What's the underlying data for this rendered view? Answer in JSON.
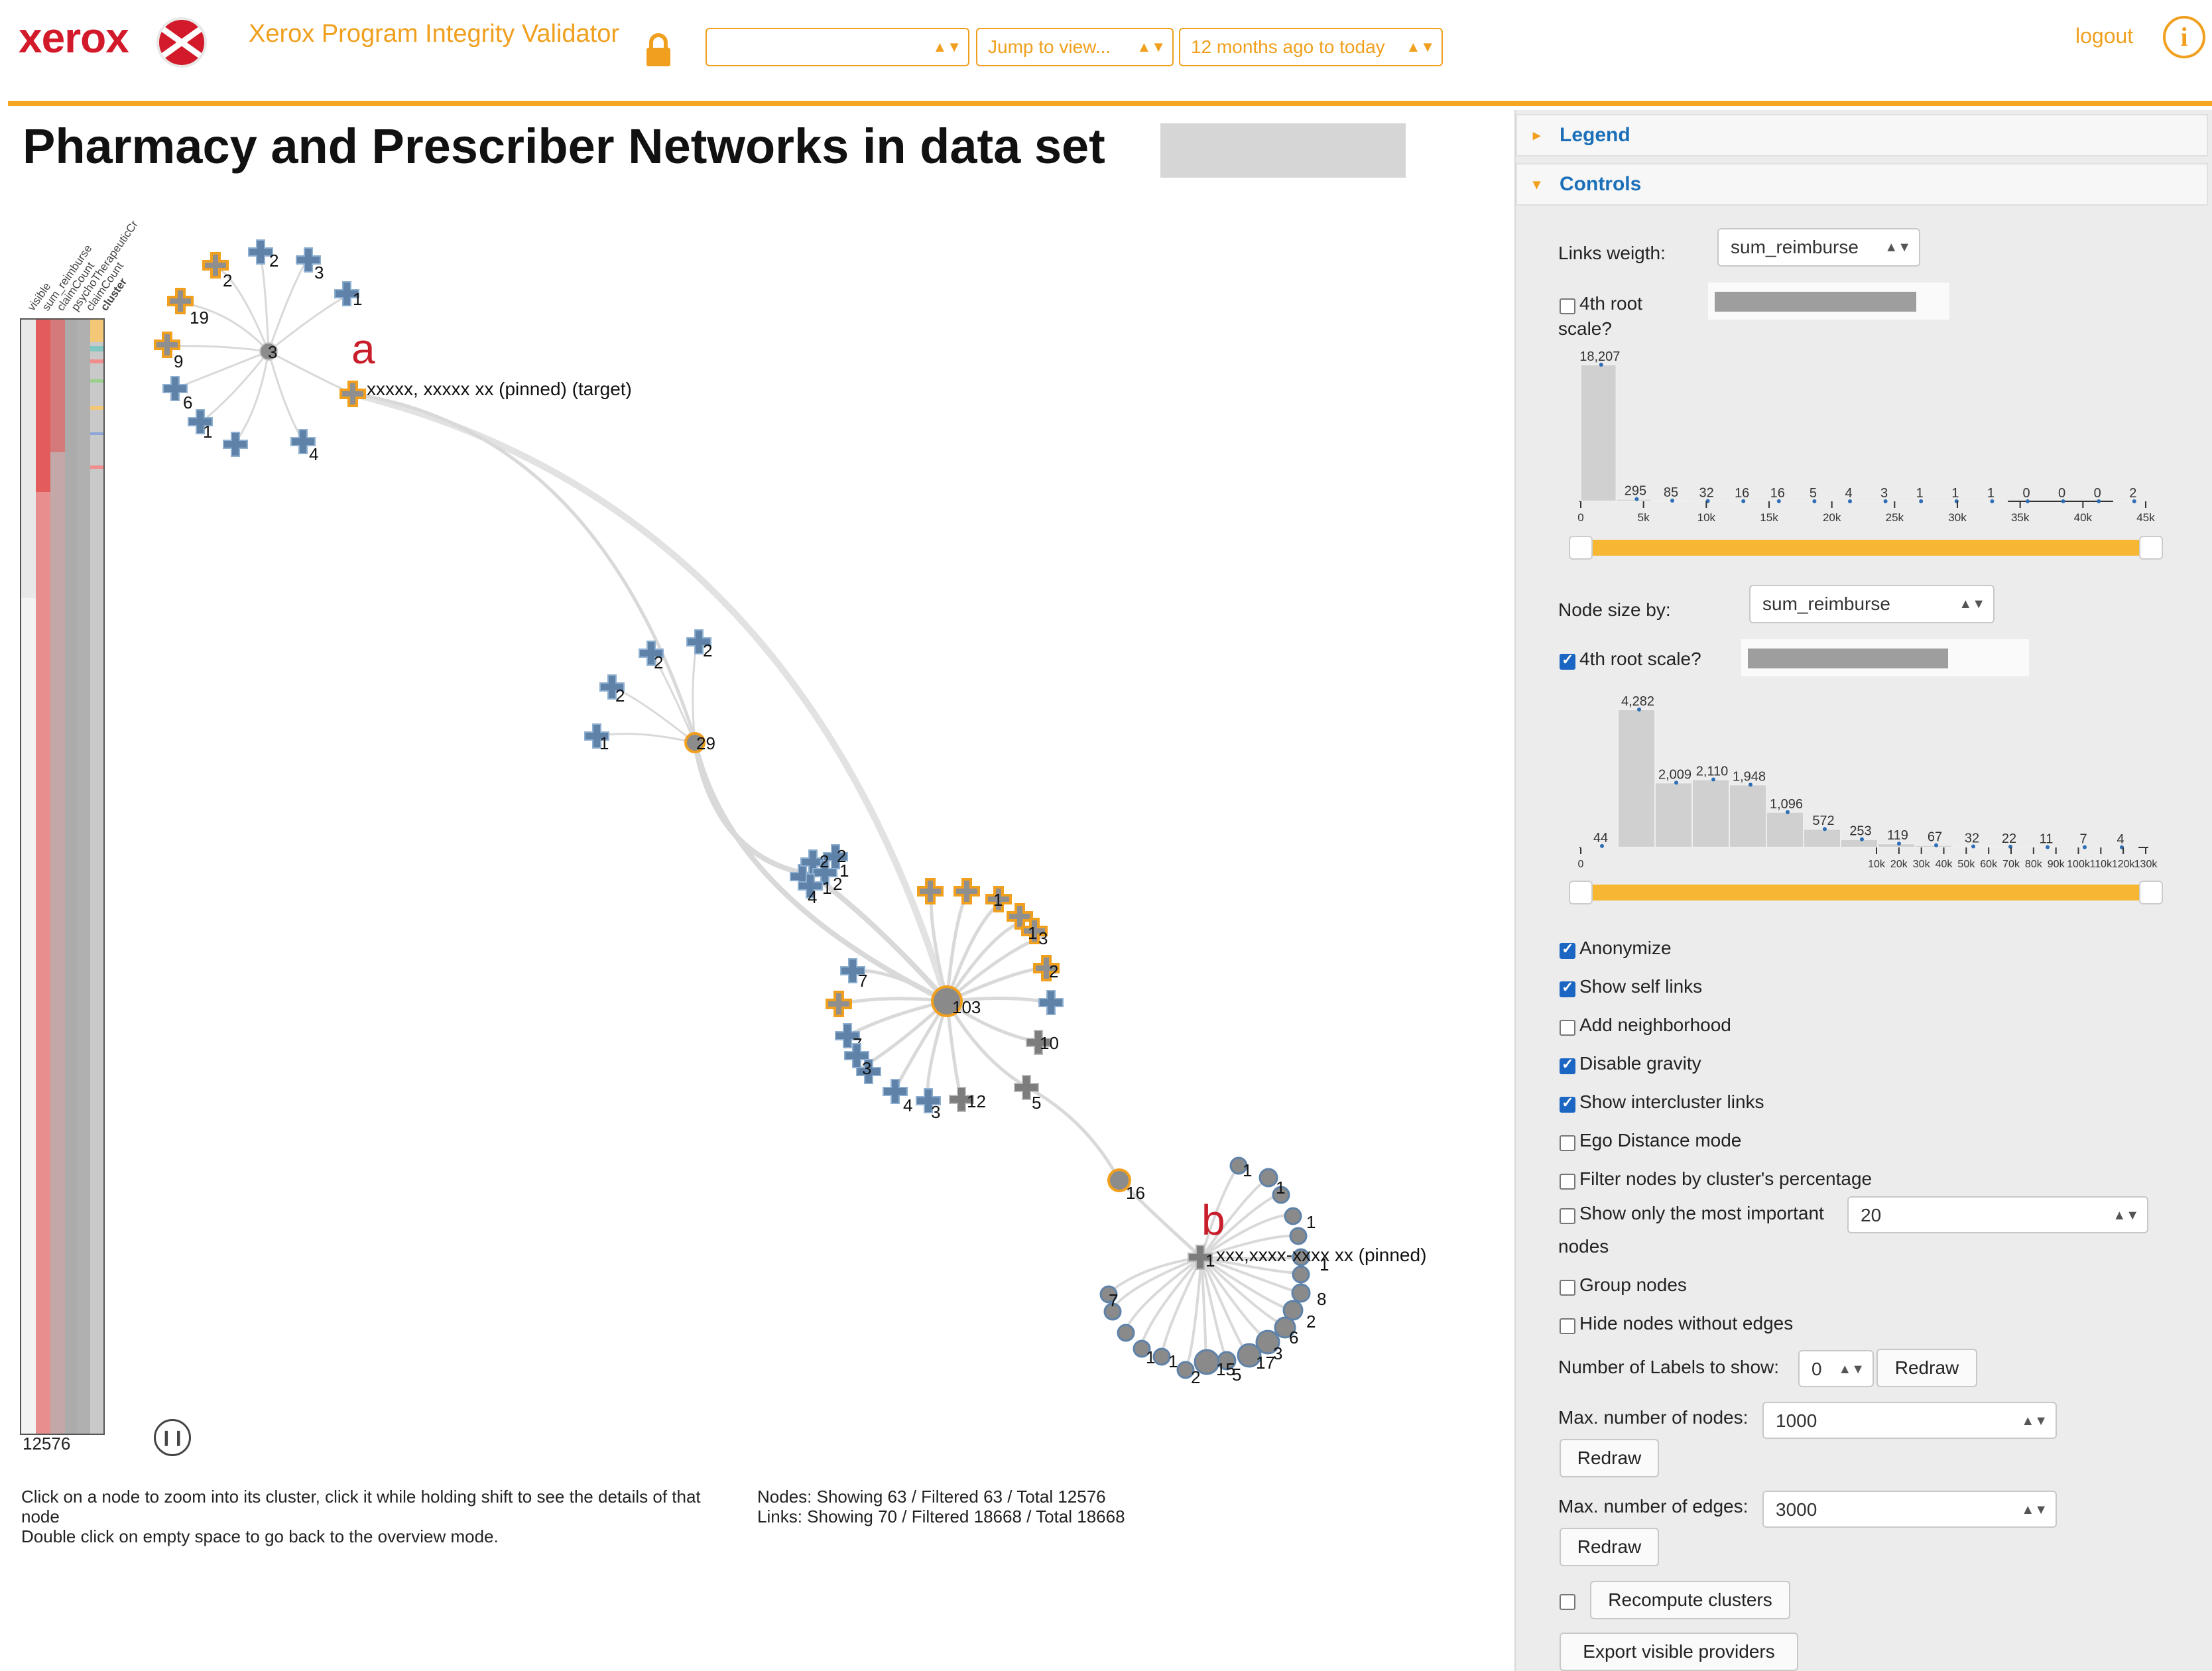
{
  "header": {
    "brand": "xerox",
    "app_title": "Xerox Program Integrity Validator",
    "dataset_select_value": "",
    "jump_select_value": "Jump to view...",
    "date_select_value": "12 months ago to today",
    "logout": "logout",
    "info_icon": "i",
    "accent": "#f0a01e"
  },
  "main": {
    "title": "Pharmacy and Prescriber Networks in data set",
    "heatmap": {
      "columns": [
        "visible",
        "sum_reimburse",
        "claimCount",
        "psychoTherapeuticCr",
        "claimCount",
        "cluster"
      ],
      "count": "12576"
    },
    "instructions": {
      "line1": "Click on a node to zoom into its cluster, click it while holding shift to see the details of that",
      "line2": "node",
      "line3": "Double click on empty space to go back to the overview mode."
    },
    "stats": {
      "nodes": "Nodes: Showing 63 / Filtered 63 / Total 12576",
      "links": "Links: Showing 70 / Filtered 18668 / Total 18668"
    }
  },
  "graph": {
    "annotation_a": "a",
    "annotation_b": "b",
    "label_a": "xxxxx, xxxxx xx (pinned) (target)",
    "label_b": "xxx,xxxx-xxxx xx (pinned)",
    "cluster1": {
      "hub": "3",
      "nodes": [
        [
          "2",
          "blue"
        ],
        [
          "3",
          "blue"
        ],
        [
          "2",
          "orange"
        ],
        [
          "19",
          "orange"
        ],
        [
          "1",
          "blue"
        ],
        [
          "9",
          "orange"
        ],
        [
          "6",
          "blue"
        ],
        [
          "1",
          "blue"
        ],
        [
          "",
          "blue"
        ],
        [
          "4",
          "blue"
        ]
      ]
    },
    "cluster2": {
      "hub": "29",
      "nodes": [
        [
          "2",
          "blue"
        ],
        [
          "2",
          "blue"
        ],
        [
          "2",
          "blue"
        ],
        [
          "1",
          "blue"
        ]
      ]
    },
    "cluster3": {
      "hub": "103",
      "labels": [
        "2",
        "2",
        "1",
        "2",
        "4",
        "1",
        "3",
        "2",
        "7",
        "10",
        "7",
        "3",
        "4",
        "3",
        "12",
        "5"
      ]
    },
    "cluster4": {
      "hub": "16"
    },
    "cluster5": {
      "labels": [
        "1",
        "1",
        "1",
        "1",
        "8",
        "2",
        "6",
        "3",
        "17",
        "5",
        "15",
        "2",
        "1",
        "7",
        "1"
      ]
    }
  },
  "sidebar": {
    "legend_label": "Legend",
    "controls_label": "Controls",
    "links_weight_label": "Links weigth:",
    "links_weight_value": "sum_reimburse",
    "root_scale_1_label": "4th root",
    "root_scale_1_label2": "scale?",
    "hist1": {
      "values": [
        18207,
        295,
        85,
        32,
        16,
        16,
        5,
        4,
        3,
        1,
        1,
        1,
        0,
        0,
        0,
        2
      ],
      "value_labels": [
        "18,207",
        "295",
        "85",
        "32",
        "16",
        "16",
        "5",
        "4",
        "3",
        "1",
        "1",
        "1",
        "0",
        "0",
        "0",
        "2"
      ],
      "ticks": [
        "0",
        "5k",
        "10k",
        "15k",
        "20k",
        "25k",
        "30k",
        "35k",
        "40k",
        "45k"
      ]
    },
    "node_size_label": "Node size by:",
    "node_size_value": "sum_reimburse",
    "root_scale_2_label": "4th root scale?",
    "hist2": {
      "values": [
        44,
        4282,
        2009,
        2110,
        1948,
        1096,
        572,
        253,
        119,
        67,
        32,
        22,
        11,
        7,
        4
      ],
      "value_labels": [
        "44",
        "4,282",
        "2,009",
        "2,110",
        "1,948",
        "1,096",
        "572",
        "253",
        "119",
        "67",
        "32",
        "22",
        "11",
        "7",
        "4"
      ],
      "ticks": [
        "0",
        "10k",
        "20k",
        "30k",
        "40k",
        "50k",
        "60k",
        "70k",
        "80k",
        "90k",
        "100k",
        "110k",
        "120k",
        "130k"
      ]
    },
    "checkboxes": [
      {
        "label": "Anonymize",
        "checked": true
      },
      {
        "label": "Show self links",
        "checked": true
      },
      {
        "label": "Add neighborhood",
        "checked": false
      },
      {
        "label": "Disable gravity",
        "checked": true
      },
      {
        "label": "Show intercluster links",
        "checked": true
      },
      {
        "label": "Ego Distance mode",
        "checked": false
      },
      {
        "label": "Filter nodes by cluster's percentage",
        "checked": false
      }
    ],
    "important_label": "Show only the most important",
    "important_value": "20",
    "important_label2": "nodes",
    "group_nodes_label": "Group nodes",
    "hide_nodes_label": "Hide nodes without edges",
    "num_labels_label": "Number of Labels to show:",
    "num_labels_value": "0",
    "redraw_label": "Redraw",
    "max_nodes_label": "Max. number of nodes:",
    "max_nodes_value": "1000",
    "max_edges_label": "Max. number of edges:",
    "max_edges_value": "3000",
    "recompute_label": "Recompute clusters",
    "export_label": "Export visible providers"
  }
}
